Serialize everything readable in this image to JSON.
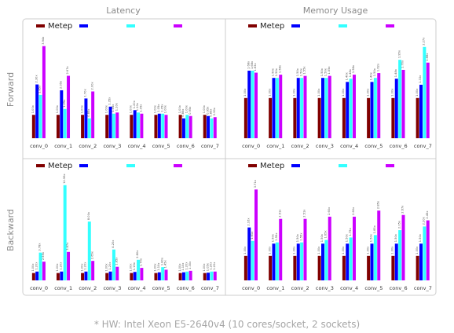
{
  "titles": {
    "columns": [
      "Latency",
      "Memory Usage"
    ],
    "rows": [
      "Forward",
      "Backward"
    ]
  },
  "footnote": "* HW: Intel Xeon E5-2640v4 (10 cores/socket, 2 sockets)",
  "colors": {
    "series": [
      "#800000",
      "#0000ff",
      "#33ffff",
      "#cc00ff"
    ],
    "frame": "#cccccc",
    "gridline": "#e6e6e6"
  },
  "chart_data": [
    {
      "type": "bar",
      "panel": "Forward Latency",
      "categories": [
        "conv_0",
        "conv_1",
        "conv_2",
        "conv_3",
        "conv_4",
        "conv_5",
        "conv_6",
        "conv_7"
      ],
      "series": [
        {
          "name": "Metep",
          "values": [
            1.0,
            1.0,
            1.0,
            1.0,
            1.0,
            1.0,
            1.0,
            1.0
          ]
        },
        {
          "name": "",
          "values": [
            2.3,
            2.05,
            1.7,
            1.35,
            1.2,
            1.05,
            0.85,
            0.95
          ]
        },
        {
          "name": "",
          "values": [
            1.85,
            1.25,
            0.85,
            1.05,
            1.1,
            1.05,
            1.0,
            0.85
          ]
        },
        {
          "name": "",
          "values": [
            3.94,
            2.67,
            2.0,
            1.1,
            1.05,
            1.0,
            0.95,
            0.9
          ]
        }
      ],
      "ylim": [
        0,
        4.3
      ],
      "grid": false,
      "legend": "top-left"
    },
    {
      "type": "bar",
      "panel": "Forward Memory Usage",
      "categories": [
        "conv_0",
        "conv_1",
        "conv_2",
        "conv_3",
        "conv_4",
        "conv_5",
        "conv_6",
        "conv_7"
      ],
      "series": [
        {
          "name": "Metep",
          "values": [
            1.0,
            1.0,
            1.0,
            1.0,
            1.0,
            1.0,
            1.0,
            1.0
          ]
        },
        {
          "name": "",
          "values": [
            1.68,
            1.5,
            1.5,
            1.5,
            1.4,
            1.4,
            1.48,
            1.33
          ]
        },
        {
          "name": "",
          "values": [
            1.68,
            1.5,
            1.5,
            1.5,
            1.48,
            1.5,
            1.95,
            2.27
          ]
        },
        {
          "name": "",
          "values": [
            1.63,
            1.58,
            1.55,
            1.55,
            1.58,
            1.62,
            1.7,
            1.88
          ]
        }
      ],
      "ylim": [
        0,
        2.5
      ],
      "grid": false,
      "legend": "top-left"
    },
    {
      "type": "bar",
      "panel": "Backward Latency",
      "categories": [
        "conv_0",
        "conv_1",
        "conv_2",
        "conv_3",
        "conv_4",
        "conv_5",
        "conv_6",
        "conv_7"
      ],
      "series": [
        {
          "name": "Metep",
          "values": [
            1.0,
            1.0,
            1.0,
            1.0,
            1.0,
            1.0,
            1.0,
            1.0
          ]
        },
        {
          "name": "",
          "values": [
            1.2,
            1.2,
            1.2,
            1.2,
            1.15,
            1.1,
            1.1,
            1.05
          ]
        },
        {
          "name": "",
          "values": [
            3.78,
            12.96,
            8.0,
            4.2,
            2.8,
            1.8,
            1.2,
            1.2
          ]
        },
        {
          "name": "",
          "values": [
            2.55,
            3.87,
            2.65,
            1.85,
            1.7,
            1.45,
            1.3,
            1.2
          ]
        }
      ],
      "ylim": [
        0,
        14
      ],
      "grid": false,
      "legend": "top-left"
    },
    {
      "type": "bar",
      "panel": "Backward Memory Usage",
      "categories": [
        "conv_0",
        "conv_1",
        "conv_2",
        "conv_3",
        "conv_4",
        "conv_5",
        "conv_6",
        "conv_7"
      ],
      "series": [
        {
          "name": "Metep",
          "values": [
            1.0,
            1.0,
            1.0,
            1.0,
            1.0,
            1.0,
            1.0,
            1.0
          ]
        },
        {
          "name": "",
          "values": [
            2.16,
            1.5,
            1.5,
            1.5,
            1.5,
            1.5,
            1.5,
            1.5
          ]
        },
        {
          "name": "",
          "values": [
            1.61,
            1.55,
            1.55,
            1.65,
            1.75,
            1.85,
            2.05,
            2.2
          ]
        },
        {
          "name": "",
          "values": [
            3.71,
            2.51,
            2.51,
            2.6,
            2.6,
            2.85,
            2.67,
            2.45
          ]
        }
      ],
      "ylim": [
        0,
        4.2
      ],
      "grid": false,
      "legend": "top-left"
    }
  ]
}
